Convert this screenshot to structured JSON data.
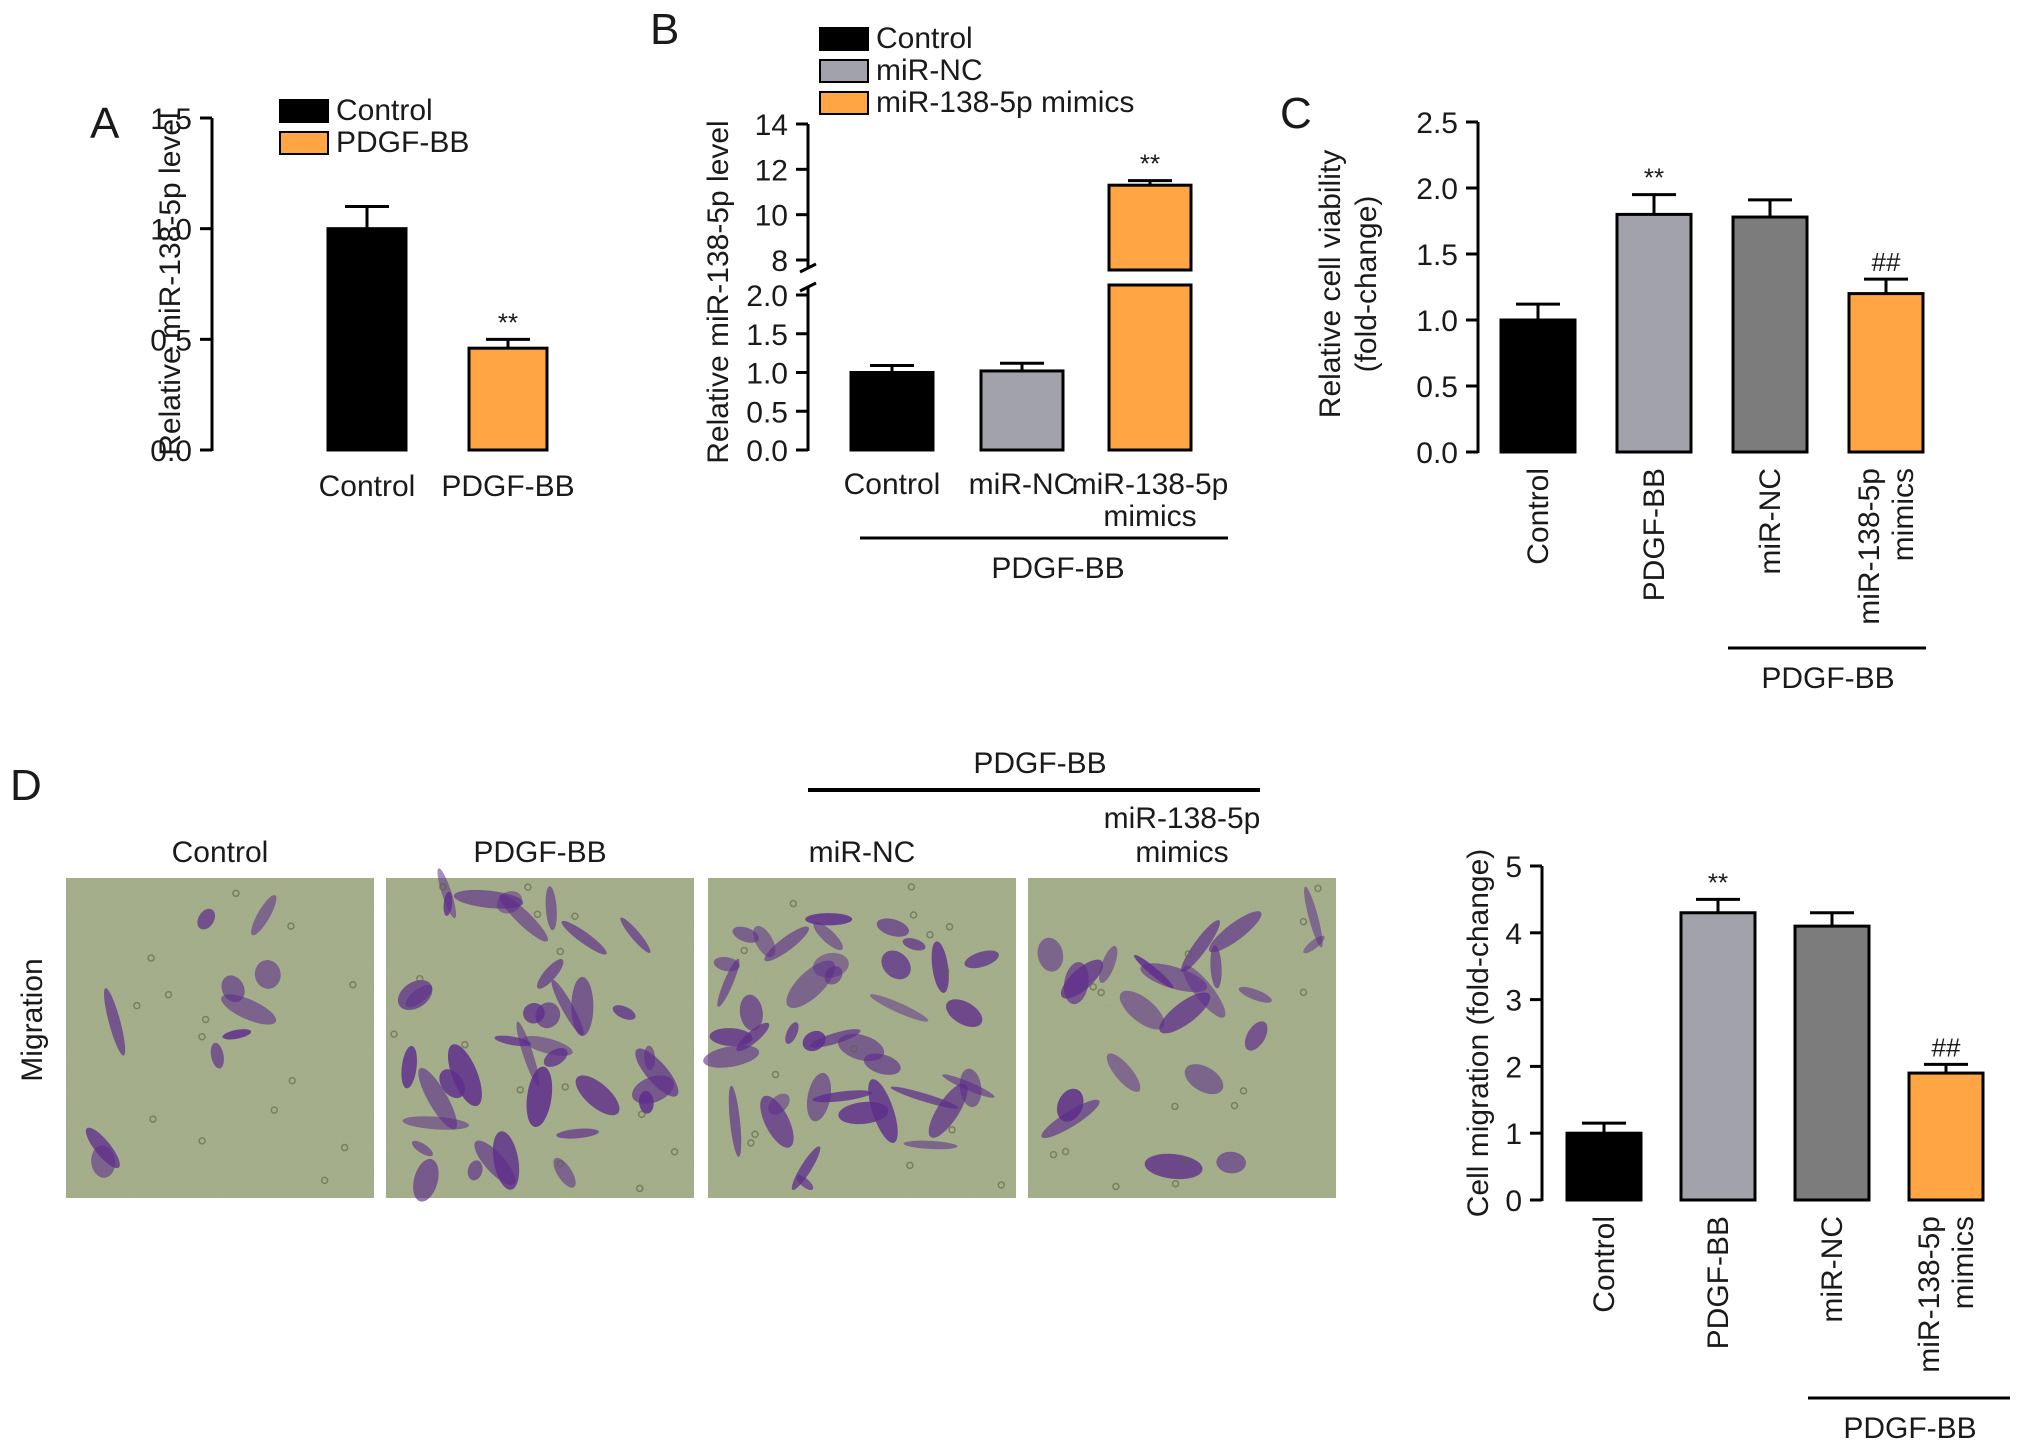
{
  "colors": {
    "black": "#000000",
    "light_gray": "#a2a2ab",
    "dark_gray": "#7c7c7c",
    "orange": "#ffa544",
    "photo_bg": "#a9b48d",
    "stain": "#5e2d8c"
  },
  "chart_data": [
    {
      "panel": "A",
      "type": "bar",
      "categories": [
        "Control",
        "PDGF-BB"
      ],
      "values": [
        1.0,
        0.46
      ],
      "errors": [
        0.1,
        0.04
      ],
      "colors": [
        "#000000",
        "#ffa544"
      ],
      "annotations": [
        "",
        "**"
      ],
      "xlabel": "",
      "ylabel": "Relative miR-138-5p level",
      "ylim": [
        0,
        1.5
      ],
      "yticks": [
        "0.0",
        "0.5",
        "1.0",
        "1.5"
      ],
      "legend": [
        {
          "label": "Control",
          "color": "#000000"
        },
        {
          "label": "PDGF-BB",
          "color": "#ffa544"
        }
      ],
      "legend_position": "top-right"
    },
    {
      "panel": "B",
      "type": "bar",
      "categories": [
        "Control",
        "miR-NC",
        "miR-138-5p mimics"
      ],
      "category_lines": [
        [
          "Control"
        ],
        [
          "miR-NC"
        ],
        [
          "miR-138-5p",
          "mimics"
        ]
      ],
      "values": [
        1.0,
        1.02,
        11.3
      ],
      "errors": [
        0.09,
        0.1,
        0.2
      ],
      "colors": [
        "#000000",
        "#a2a2ab",
        "#ffa544"
      ],
      "annotations": [
        "",
        "",
        "**"
      ],
      "ylabel": "Relative miR-138-5p level",
      "axis_break": true,
      "lower_ylim": [
        0,
        2.0
      ],
      "upper_ylim": [
        8,
        14
      ],
      "lower_yticks": [
        "0.0",
        "0.5",
        "1.0",
        "1.5",
        "2.0"
      ],
      "upper_yticks": [
        "8",
        "10",
        "12",
        "14"
      ],
      "group_label": "PDGF-BB",
      "legend": [
        {
          "label": "Control",
          "color": "#000000"
        },
        {
          "label": "miR-NC",
          "color": "#a2a2ab"
        },
        {
          "label": "miR-138-5p mimics",
          "color": "#ffa544"
        }
      ],
      "legend_position": "top"
    },
    {
      "panel": "C",
      "type": "bar",
      "categories": [
        "Control",
        "PDGF-BB",
        "miR-NC",
        "miR-138-5p mimics"
      ],
      "category_lines": [
        [
          "Control"
        ],
        [
          "PDGF-BB"
        ],
        [
          "miR-NC"
        ],
        [
          "miR-138-5p",
          "mimics"
        ]
      ],
      "values": [
        1.0,
        1.8,
        1.78,
        1.2
      ],
      "errors": [
        0.12,
        0.15,
        0.13,
        0.11
      ],
      "colors": [
        "#000000",
        "#a2a2ab",
        "#7c7c7c",
        "#ffa544"
      ],
      "annotations": [
        "",
        "**",
        "",
        "##"
      ],
      "ylabel_lines": [
        "Relative cell viability",
        "(fold-change)"
      ],
      "ylim": [
        0,
        2.5
      ],
      "yticks": [
        "0.0",
        "0.5",
        "1.0",
        "1.5",
        "2.0",
        "2.5"
      ],
      "group_label": "PDGF-BB"
    },
    {
      "panel": "D",
      "type": "bar",
      "categories": [
        "Control",
        "PDGF-BB",
        "miR-NC",
        "miR-138-5p mimics"
      ],
      "category_lines": [
        [
          "Control"
        ],
        [
          "PDGF-BB"
        ],
        [
          "miR-NC"
        ],
        [
          "miR-138-5p",
          "mimics"
        ]
      ],
      "values": [
        1.0,
        4.3,
        4.1,
        1.9
      ],
      "errors": [
        0.15,
        0.2,
        0.2,
        0.13
      ],
      "colors": [
        "#000000",
        "#a2a2ab",
        "#7c7c7c",
        "#ffa544"
      ],
      "annotations": [
        "",
        "**",
        "",
        "##"
      ],
      "ylabel": "Cell migration (fold-change)",
      "ylim": [
        0,
        5
      ],
      "yticks": [
        "0",
        "1",
        "2",
        "3",
        "4",
        "5"
      ],
      "group_label": "PDGF-BB"
    }
  ],
  "panel_letters": {
    "a": "A",
    "b": "B",
    "c": "C",
    "d": "D"
  },
  "panel_d_images": {
    "row_label": "Migration",
    "group_label": "PDGF-BB",
    "titles": [
      [
        "Control"
      ],
      [
        "PDGF-BB"
      ],
      [
        "miR-NC"
      ],
      [
        "miR-138-5p",
        "mimics"
      ]
    ]
  }
}
